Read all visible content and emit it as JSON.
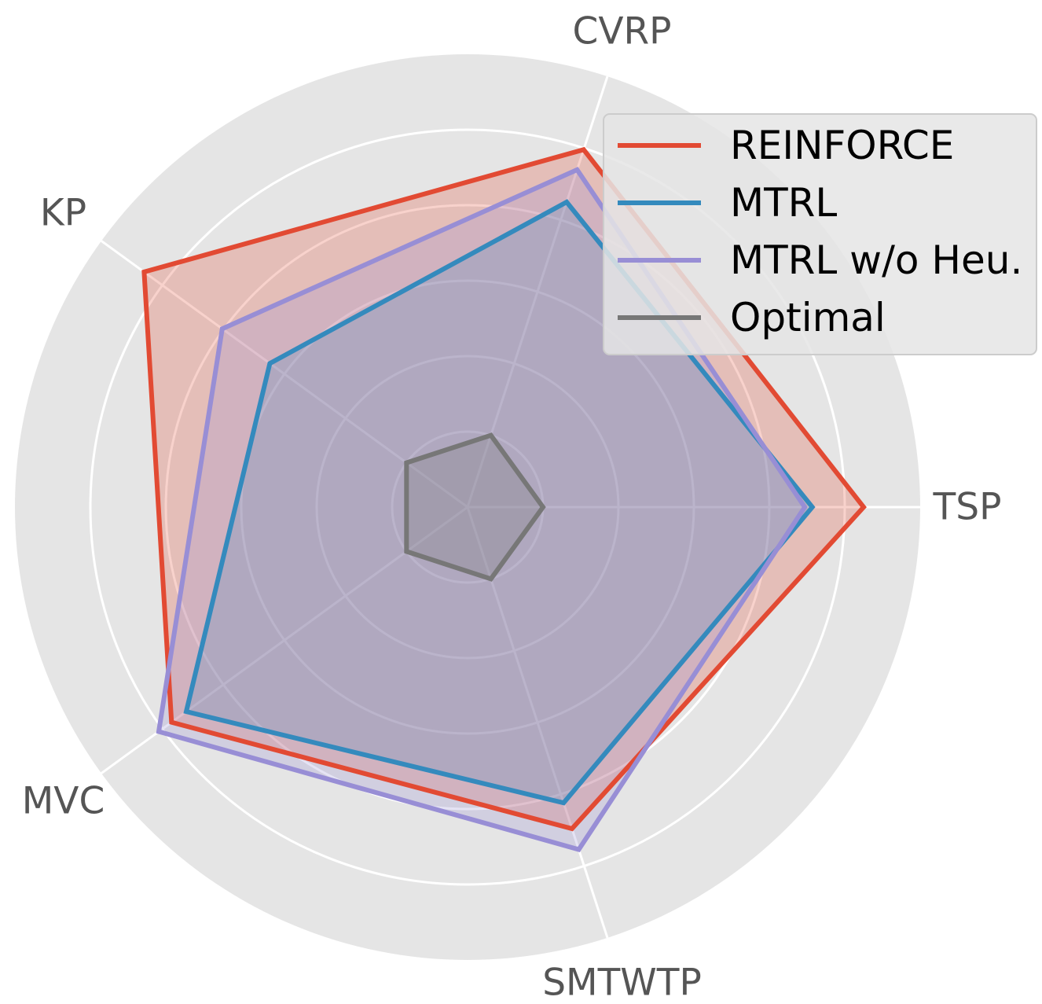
{
  "chart_data": {
    "type": "radar",
    "axes": [
      "TSP",
      "CVRP",
      "KP",
      "MVC",
      "SMTWTP"
    ],
    "rmax": 6,
    "rings": [
      1,
      2,
      3,
      4,
      5,
      6
    ],
    "grid": true,
    "legend_position": "top-right",
    "series": [
      {
        "name": "REINFORCE",
        "color": "#E24A33",
        "values": [
          5.25,
          4.98,
          5.3,
          4.85,
          4.48
        ]
      },
      {
        "name": "MTRL",
        "color": "#348ABD",
        "values": [
          4.57,
          4.25,
          3.24,
          4.61,
          4.12
        ]
      },
      {
        "name": "MTRL w/o Heu.",
        "color": "#988ED5",
        "values": [
          4.47,
          4.7,
          4.02,
          5.06,
          4.77
        ]
      },
      {
        "name": "Optimal",
        "color": "#777777",
        "values": [
          1.0,
          1.0,
          1.0,
          1.0,
          1.0
        ]
      }
    ]
  }
}
